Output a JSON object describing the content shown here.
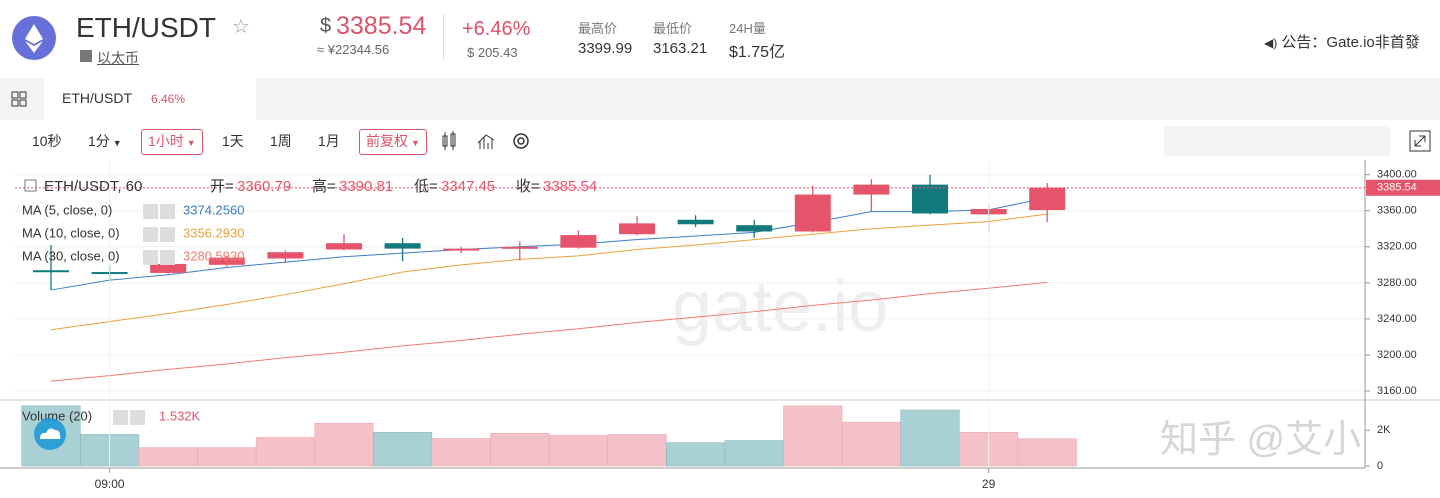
{
  "header": {
    "pair": "ETH/USDT",
    "name": "以太币",
    "currency": "$",
    "price": 3385.54,
    "price_cny": "≈ ¥22344.56",
    "change_pct": "+6.46%",
    "change_abs": "$ 205.43",
    "high_label": "最高价",
    "high": 3399.99,
    "low_label": "最低价",
    "low": 3163.21,
    "volume_label": "24H量",
    "volume": "$1.75亿",
    "notice": "公告：Gate.io非首發"
  },
  "tab": {
    "pair": "ETH/USDT",
    "change": "6.46%"
  },
  "toolbar": {
    "intervals": [
      "10秒",
      "1分",
      "1小时",
      "1天",
      "1周",
      "1月"
    ],
    "adjust": "前复权",
    "views": [
      "专业版",
      "简洁版",
      "深度图"
    ]
  },
  "watermark": "知乎 @艾小白",
  "logo_watermark": "gate.io",
  "chart_data": {
    "type": "candlestick",
    "title": "ETH/USDT, 60",
    "legend_labels": {
      "open": "开=",
      "high": "高=",
      "low": "低=",
      "close": "收="
    },
    "categories": [
      null,
      "09:00",
      null,
      null,
      null,
      null,
      null,
      null,
      null,
      null,
      null,
      null,
      null,
      null,
      null,
      null,
      "29",
      null
    ],
    "open": [
      3294,
      3292,
      3291,
      3300,
      3307,
      3317,
      3324,
      3316,
      3318,
      3319,
      3334,
      3350,
      3344,
      3337,
      3378,
      3389,
      3356,
      3360.79
    ],
    "high": [
      3322,
      3299,
      3303,
      3310,
      3316,
      3334,
      3330,
      3320,
      3326,
      3338,
      3354,
      3355,
      3350,
      3388,
      3395,
      3400,
      3368,
      3390.81
    ],
    "low": [
      3272,
      3283,
      3290,
      3298,
      3302,
      3316,
      3304,
      3313,
      3305,
      3318,
      3333,
      3342,
      3330,
      3336,
      3359,
      3356,
      3337,
      3347.45
    ],
    "close": [
      3292,
      3291,
      3301,
      3308,
      3314,
      3324,
      3318,
      3318,
      3320,
      3333,
      3346,
      3345,
      3337,
      3378,
      3389,
      3357,
      3362,
      3385.54
    ],
    "up_color": "#e5546a",
    "down_color": "#127a7d",
    "ylim": [
      3150,
      3413
    ],
    "yticks": [
      {
        "value": 3160,
        "label": "3160.00"
      },
      {
        "value": 3200,
        "label": "3200.00"
      },
      {
        "value": 3240,
        "label": "3240.00"
      },
      {
        "value": 3280,
        "label": "3280.00"
      },
      {
        "value": 3320,
        "label": "3320.00"
      },
      {
        "value": 3360,
        "label": "3360.00"
      },
      {
        "value": 3400,
        "label": "3400.00"
      }
    ],
    "grid": true,
    "series": [
      {
        "name": "MA (5, close, 0)",
        "color": "#3d7cc9",
        "values": [
          3272,
          3283,
          3289,
          3297,
          3303,
          3309,
          3313,
          3317,
          3320,
          3323,
          3328,
          3332,
          3336,
          3347,
          3359,
          3359,
          3361,
          3374.256
        ],
        "value_labels": [
          null,
          null,
          null,
          null,
          null,
          null,
          null,
          null,
          null,
          null,
          null,
          null,
          null,
          null,
          null,
          null,
          null,
          "3374.2560"
        ]
      },
      {
        "name": "MA (10, close, 0)",
        "color": "#e8a23a",
        "values": [
          3228,
          3237,
          3246,
          3256,
          3267,
          3279,
          3292,
          3300,
          3306,
          3310,
          3317,
          3322,
          3328,
          3334,
          3340,
          3344,
          3348,
          3356.293
        ],
        "value_labels": [
          null,
          null,
          null,
          null,
          null,
          null,
          null,
          null,
          null,
          null,
          null,
          null,
          null,
          null,
          null,
          null,
          null,
          "3356.2930"
        ]
      },
      {
        "name": "MA (30, close, 0)",
        "color": "#ef7c6e",
        "values": [
          3171,
          3177,
          3184,
          3190,
          3197,
          3203,
          3210,
          3216,
          3223,
          3229,
          3236,
          3242,
          3248,
          3255,
          3261,
          3268,
          3274,
          3280.593
        ],
        "value_labels": [
          null,
          null,
          null,
          null,
          null,
          null,
          null,
          null,
          null,
          null,
          null,
          null,
          null,
          null,
          null,
          null,
          null,
          "3280.5930"
        ]
      }
    ],
    "volume": {
      "name": "Volume (20)",
      "values": [
        3.37,
        1.77,
        1.03,
        1.03,
        1.6,
        2.4,
        1.89,
        1.54,
        1.83,
        1.71,
        1.77,
        1.31,
        1.43,
        3.37,
        2.46,
        3.14,
        1.89,
        1.532
      ],
      "value_labels": [
        null,
        null,
        null,
        null,
        null,
        null,
        null,
        null,
        null,
        null,
        null,
        null,
        null,
        null,
        null,
        null,
        null,
        "1.532K"
      ],
      "ylim": [
        0,
        3.7
      ],
      "yticks": [
        0,
        {
          "value": 2,
          "label": "2K"
        }
      ],
      "up_color": "#f5c1c8",
      "down_color": "#a9d0d3"
    }
  }
}
